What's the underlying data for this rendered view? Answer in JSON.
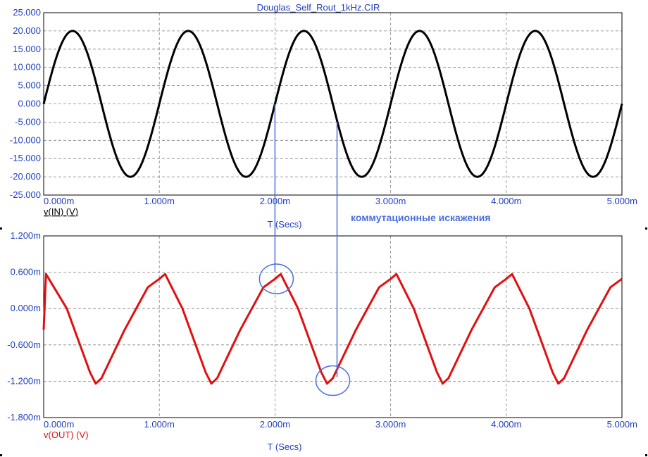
{
  "chart_data": [
    {
      "type": "line",
      "title": "Douglas_Self_Rout_1kHz.CIR",
      "xlabel": "T (Secs)",
      "ylabel": "v(IN) (V)",
      "xlim": [
        0,
        0.005
      ],
      "ylim": [
        -25,
        25
      ],
      "x_ticks": [
        "0.000m",
        "1.000m",
        "2.000m",
        "3.000m",
        "4.000m",
        "5.000m"
      ],
      "y_ticks": [
        "25.000",
        "20.000",
        "15.000",
        "10.000",
        "5.000",
        "0.000",
        "-5.000",
        "-10.000",
        "-15.000",
        "-20.000",
        "-25.000"
      ],
      "grid": true,
      "series": [
        {
          "name": "v(IN) (V)",
          "color": "#000000",
          "waveform": "sine",
          "frequency_hz": 1000,
          "amplitude": 20,
          "offset": 0,
          "x": [
            0,
            0.00025,
            0.0005,
            0.00075,
            0.001,
            0.00125,
            0.0015,
            0.00175,
            0.002,
            0.00225,
            0.0025,
            0.00275,
            0.003,
            0.00325,
            0.0035,
            0.00375,
            0.004,
            0.00425,
            0.0045,
            0.00475,
            0.005
          ],
          "y": [
            0,
            20,
            0,
            -20,
            0,
            20,
            0,
            -20,
            0,
            20,
            0,
            -20,
            0,
            20,
            0,
            -20,
            0,
            20,
            0,
            -20,
            0
          ]
        }
      ]
    },
    {
      "type": "line",
      "title": "",
      "xlabel": "T (Secs)",
      "ylabel": "v(OUT) (V)",
      "xlim": [
        0,
        0.005
      ],
      "ylim": [
        -1.8,
        1.2
      ],
      "x_ticks": [
        "0.000m",
        "1.000m",
        "2.000m",
        "3.000m",
        "4.000m",
        "5.000m"
      ],
      "y_ticks": [
        "1.200m",
        "0.600m",
        "0.000m",
        "-0.600m",
        "-1.200m",
        "-1.800m"
      ],
      "grid": true,
      "annotation": {
        "text": "коммутационные искажения",
        "color": "#4a6fdc",
        "markers": [
          {
            "x": 0.002,
            "y": 0.49
          },
          {
            "x": 0.0025,
            "y": -1.19
          }
        ]
      },
      "series": [
        {
          "name": "v(OUT) (V)",
          "color": "#e01010",
          "waveform": "triangle-like with crossover notches",
          "frequency_hz": 1000,
          "peak_max": 0.57,
          "peak_min": -1.24,
          "x": [
            0,
            2e-05,
            0.0002,
            0.0004,
            0.00045,
            0.0005,
            0.0007,
            0.0009,
            0.001,
            0.00105,
            0.0012,
            0.0014,
            0.00145,
            0.0015,
            0.0017,
            0.0019,
            0.002,
            0.00205,
            0.0022,
            0.0024,
            0.00245,
            0.0025,
            0.0027,
            0.0029,
            0.003,
            0.00305,
            0.0032,
            0.0034,
            0.00345,
            0.0035,
            0.0037,
            0.0039,
            0.004,
            0.00405,
            0.0042,
            0.0044,
            0.00445,
            0.0045,
            0.0047,
            0.0049,
            0.005
          ],
          "y": [
            -0.35,
            0.57,
            0.0,
            -1.05,
            -1.24,
            -1.15,
            -0.35,
            0.35,
            0.49,
            0.57,
            0.0,
            -1.05,
            -1.24,
            -1.15,
            -0.35,
            0.35,
            0.49,
            0.57,
            0.0,
            -1.05,
            -1.24,
            -1.15,
            -0.35,
            0.35,
            0.49,
            0.57,
            0.0,
            -1.05,
            -1.24,
            -1.15,
            -0.35,
            0.35,
            0.49,
            0.57,
            0.0,
            -1.05,
            -1.24,
            -1.15,
            -0.35,
            0.35,
            0.49
          ]
        }
      ]
    }
  ]
}
